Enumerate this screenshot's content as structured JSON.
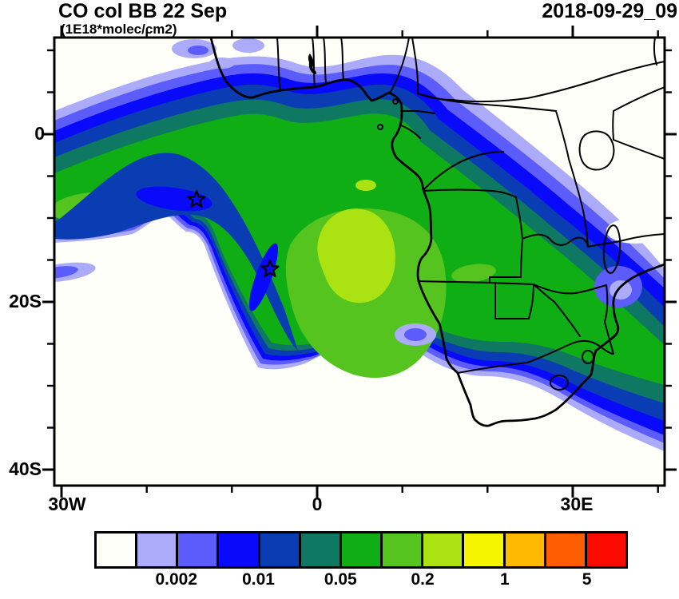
{
  "header": {
    "title": "CO col BB 22 Sep",
    "units": "(1E18*molec/cm2)",
    "datetime": "2018-09-29_09"
  },
  "axes": {
    "y_labels": [
      "0",
      "20S",
      "40S"
    ],
    "x_labels": [
      "30W",
      "0",
      "30E"
    ]
  },
  "colorbar": {
    "colors": [
      "#FFFFFA",
      "#ABABFA",
      "#5C5CFA",
      "#0A0AFA",
      "#0A3CB4",
      "#0E7862",
      "#0FAE14",
      "#55C41E",
      "#ABE312",
      "#F5F500",
      "#FFB900",
      "#FF5E00",
      "#FA0A00"
    ],
    "labels": [
      "0.002",
      "0.01",
      "0.05",
      "0.2",
      "1",
      "5"
    ]
  },
  "chart_data": {
    "type": "heatmap",
    "subtype": "filled-contour-map",
    "title": "CO col BB 22 Sep",
    "units": "1E18*molec/cm2",
    "timestamp": "2018-09-29_09",
    "region": "South Atlantic Ocean and southern Africa",
    "lon_range_deg": [
      -31,
      41
    ],
    "lat_range_deg": [
      -42,
      11.5
    ],
    "x_tick_labels": [
      "30W",
      "0",
      "30E"
    ],
    "x_tick_minor_interval_deg": 10,
    "y_tick_labels": [
      "0",
      "20S",
      "40S"
    ],
    "y_tick_minor_interval_deg": 5,
    "grid": false,
    "legend_position": "bottom-colorbar",
    "contour_levels": [
      0.001,
      0.002,
      0.005,
      0.01,
      0.02,
      0.05,
      0.1,
      0.2,
      0.5,
      1,
      2,
      5
    ],
    "palette": [
      "#FFFFFA",
      "#ABABFA",
      "#5C5CFA",
      "#0A0AFA",
      "#0A3CB4",
      "#0E7862",
      "#0FAE14",
      "#55C41E",
      "#ABE312",
      "#F5F500",
      "#FFB900",
      "#FF5E00",
      "#FA0A00"
    ],
    "colorbar_tick_labels": [
      "0.002",
      "0.01",
      "0.05",
      "0.2",
      "1",
      "5"
    ],
    "markers": [
      {
        "shape": "star",
        "lon_deg": -14.2,
        "lat_deg": -7.8
      },
      {
        "shape": "star",
        "lon_deg": -5.5,
        "lat_deg": -16.1
      }
    ],
    "plume_description": "Broad biomass-burning CO plume (peak class 0.2-0.5) arcing over the SE Atlantic off Angola, edged by dark-teal/navy/blue bands; low-value white areas over the Sahel, East Africa and South Africa; blue band trailing to the southeast corner",
    "geo_features": [
      "Africa coastline",
      "country borders",
      "Lake Volta",
      "Lake Victoria",
      "Lake Malawi",
      "Lesotho",
      "Swaziland"
    ]
  }
}
